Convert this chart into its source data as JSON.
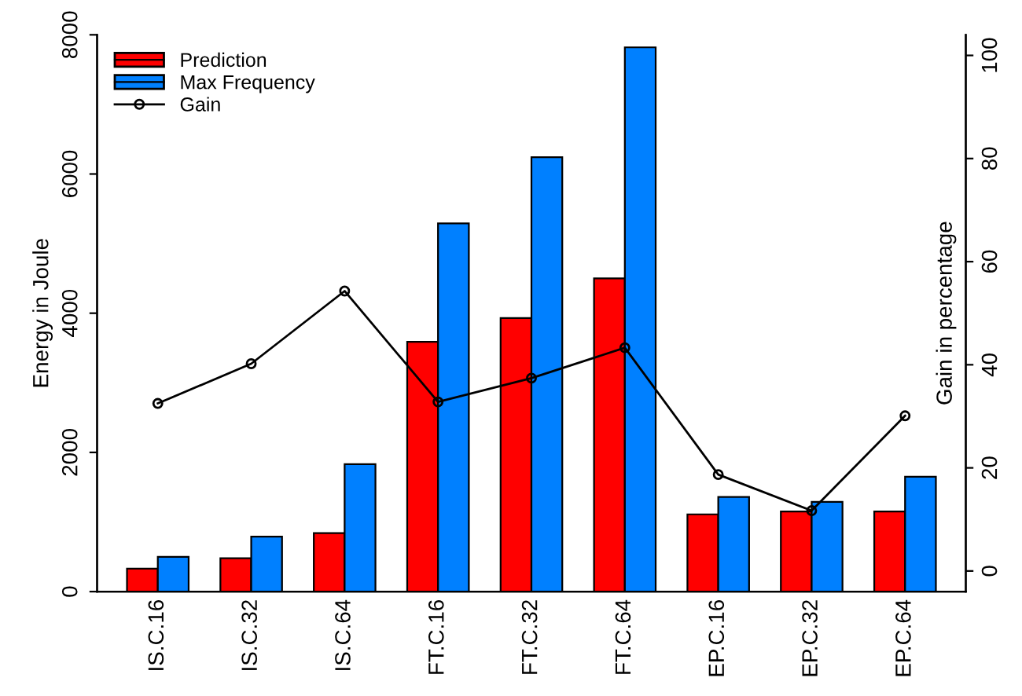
{
  "chart_data": {
    "type": "bar",
    "ylabel": "Energy in Joule",
    "y2label": "Gain in percentage",
    "categories": [
      "IS.C.16",
      "IS.C.32",
      "IS.C.64",
      "FT.C.16",
      "FT.C.32",
      "FT.C.64",
      "EP.C.16",
      "EP.C.32",
      "EP.C.64"
    ],
    "series": [
      {
        "name": "Prediction",
        "color": "#ff0000",
        "values": [
          330,
          480,
          840,
          3590,
          3930,
          4500,
          1110,
          1150,
          1150
        ]
      },
      {
        "name": "Max Frequency",
        "color": "#0080ff",
        "values": [
          500,
          790,
          1830,
          5290,
          6240,
          7820,
          1360,
          1290,
          1650
        ]
      },
      {
        "name": "Gain",
        "type": "line",
        "axis": "y2",
        "color": "#000000",
        "marker": "circle",
        "values": [
          32.5,
          40.2,
          54.3,
          32.8,
          37.4,
          43.3,
          18.7,
          11.7,
          30.1
        ]
      }
    ],
    "ylim": [
      0,
      8000
    ],
    "yticks": [
      0,
      2000,
      4000,
      6000,
      8000
    ],
    "y2lim": [
      -4,
      104
    ],
    "y2ticks": [
      0,
      20,
      40,
      60,
      80,
      100
    ],
    "legend": "top left",
    "grid": false
  }
}
